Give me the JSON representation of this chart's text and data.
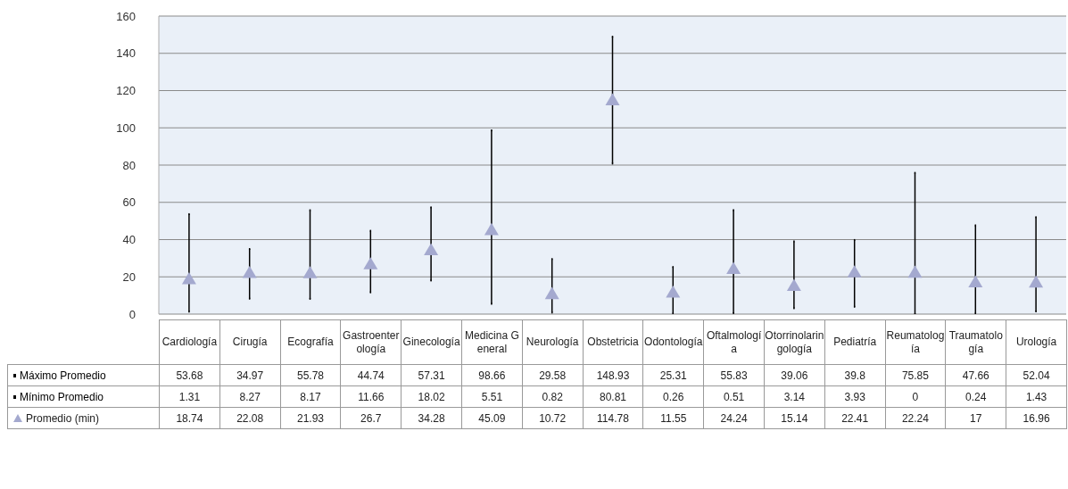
{
  "chart_data": {
    "type": "scatter",
    "categories": [
      "Cardiología",
      "Cirugía",
      "Ecografía",
      "Gastroenterología",
      "Ginecología",
      "Medicina General",
      "Neurología",
      "Obstetricia",
      "Odontología",
      "Oftalmología",
      "Otorrinolaringología",
      "Pediatría",
      "Reumatología",
      "Traumatología",
      "Urología"
    ],
    "series": [
      {
        "name": "Máximo Promedio",
        "color": "#000000",
        "values": [
          53.68,
          34.97,
          55.78,
          44.74,
          57.31,
          98.66,
          29.58,
          148.93,
          25.31,
          55.83,
          39.06,
          39.8,
          75.85,
          47.66,
          52.04
        ]
      },
      {
        "name": "Mínimo Promedio",
        "color": "#000000",
        "values": [
          1.31,
          8.27,
          8.17,
          11.66,
          18.02,
          5.51,
          0.82,
          80.81,
          0.26,
          0.51,
          3.14,
          3.93,
          0,
          0.24,
          1.43
        ]
      },
      {
        "name": "Promedio (min)",
        "color": "#a4a9cf",
        "marker": "triangle",
        "values": [
          18.74,
          22.08,
          21.93,
          26.7,
          34.28,
          45.09,
          10.72,
          114.78,
          11.55,
          24.24,
          15.14,
          22.41,
          22.24,
          17,
          16.96
        ]
      }
    ],
    "ylim": [
      0,
      160
    ],
    "yticks": [
      0,
      20,
      40,
      60,
      80,
      100,
      120,
      140,
      160
    ],
    "grid": "y",
    "legend": "bottom",
    "data_labels": true
  }
}
